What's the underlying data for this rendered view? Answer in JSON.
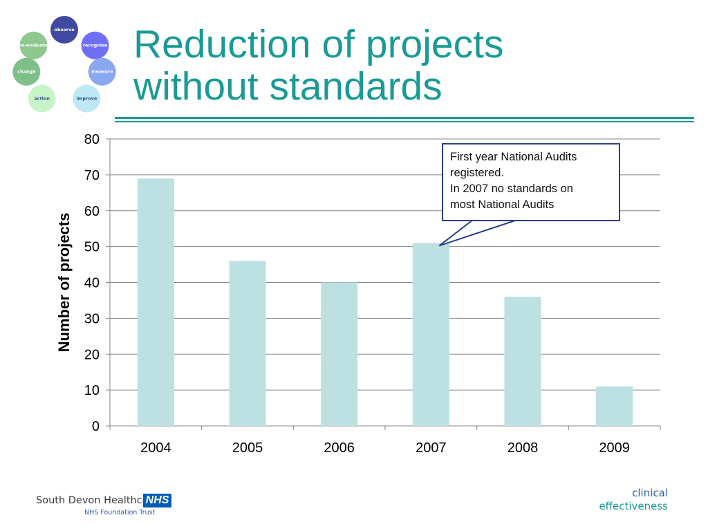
{
  "slide": {
    "title_lines": [
      "Reduction of projects",
      "without standards"
    ]
  },
  "logo": {
    "stages": [
      "observe",
      "recognise",
      "measure",
      "improve",
      "action",
      "change",
      "re-evaluate"
    ],
    "colors": [
      "#3f4aa0",
      "#6e6ff5",
      "#8aa8f0",
      "#bde8f5",
      "#c8f5c8",
      "#7fbf8a",
      "#8fc78f"
    ]
  },
  "chart_data": {
    "type": "bar",
    "categories": [
      "2004",
      "2005",
      "2006",
      "2007",
      "2008",
      "2009"
    ],
    "values": [
      69,
      46,
      40,
      51,
      36,
      11
    ],
    "ylabel": "Number of projects",
    "ylim": [
      0,
      80
    ],
    "yticks": [
      "0",
      "10",
      "20",
      "30",
      "40",
      "50",
      "60",
      "70",
      "80"
    ],
    "grid": true,
    "bar_color": "#bde0e3",
    "annotation": {
      "lines": [
        "First year National Audits",
        "registered.",
        "In 2007 no standards on",
        "most National Audits"
      ],
      "points_to": "2007"
    }
  },
  "footer": {
    "org_name": "South Devon Healthcare",
    "badge": "NHS",
    "org_sub": "NHS Foundation Trust",
    "brand_line1": "clinical",
    "brand_line2": "effectiveness",
    "colors": {
      "nhs_blue": "#005eb8",
      "teal": "#1a9a95",
      "brand_blue": "#2c63a8"
    }
  }
}
